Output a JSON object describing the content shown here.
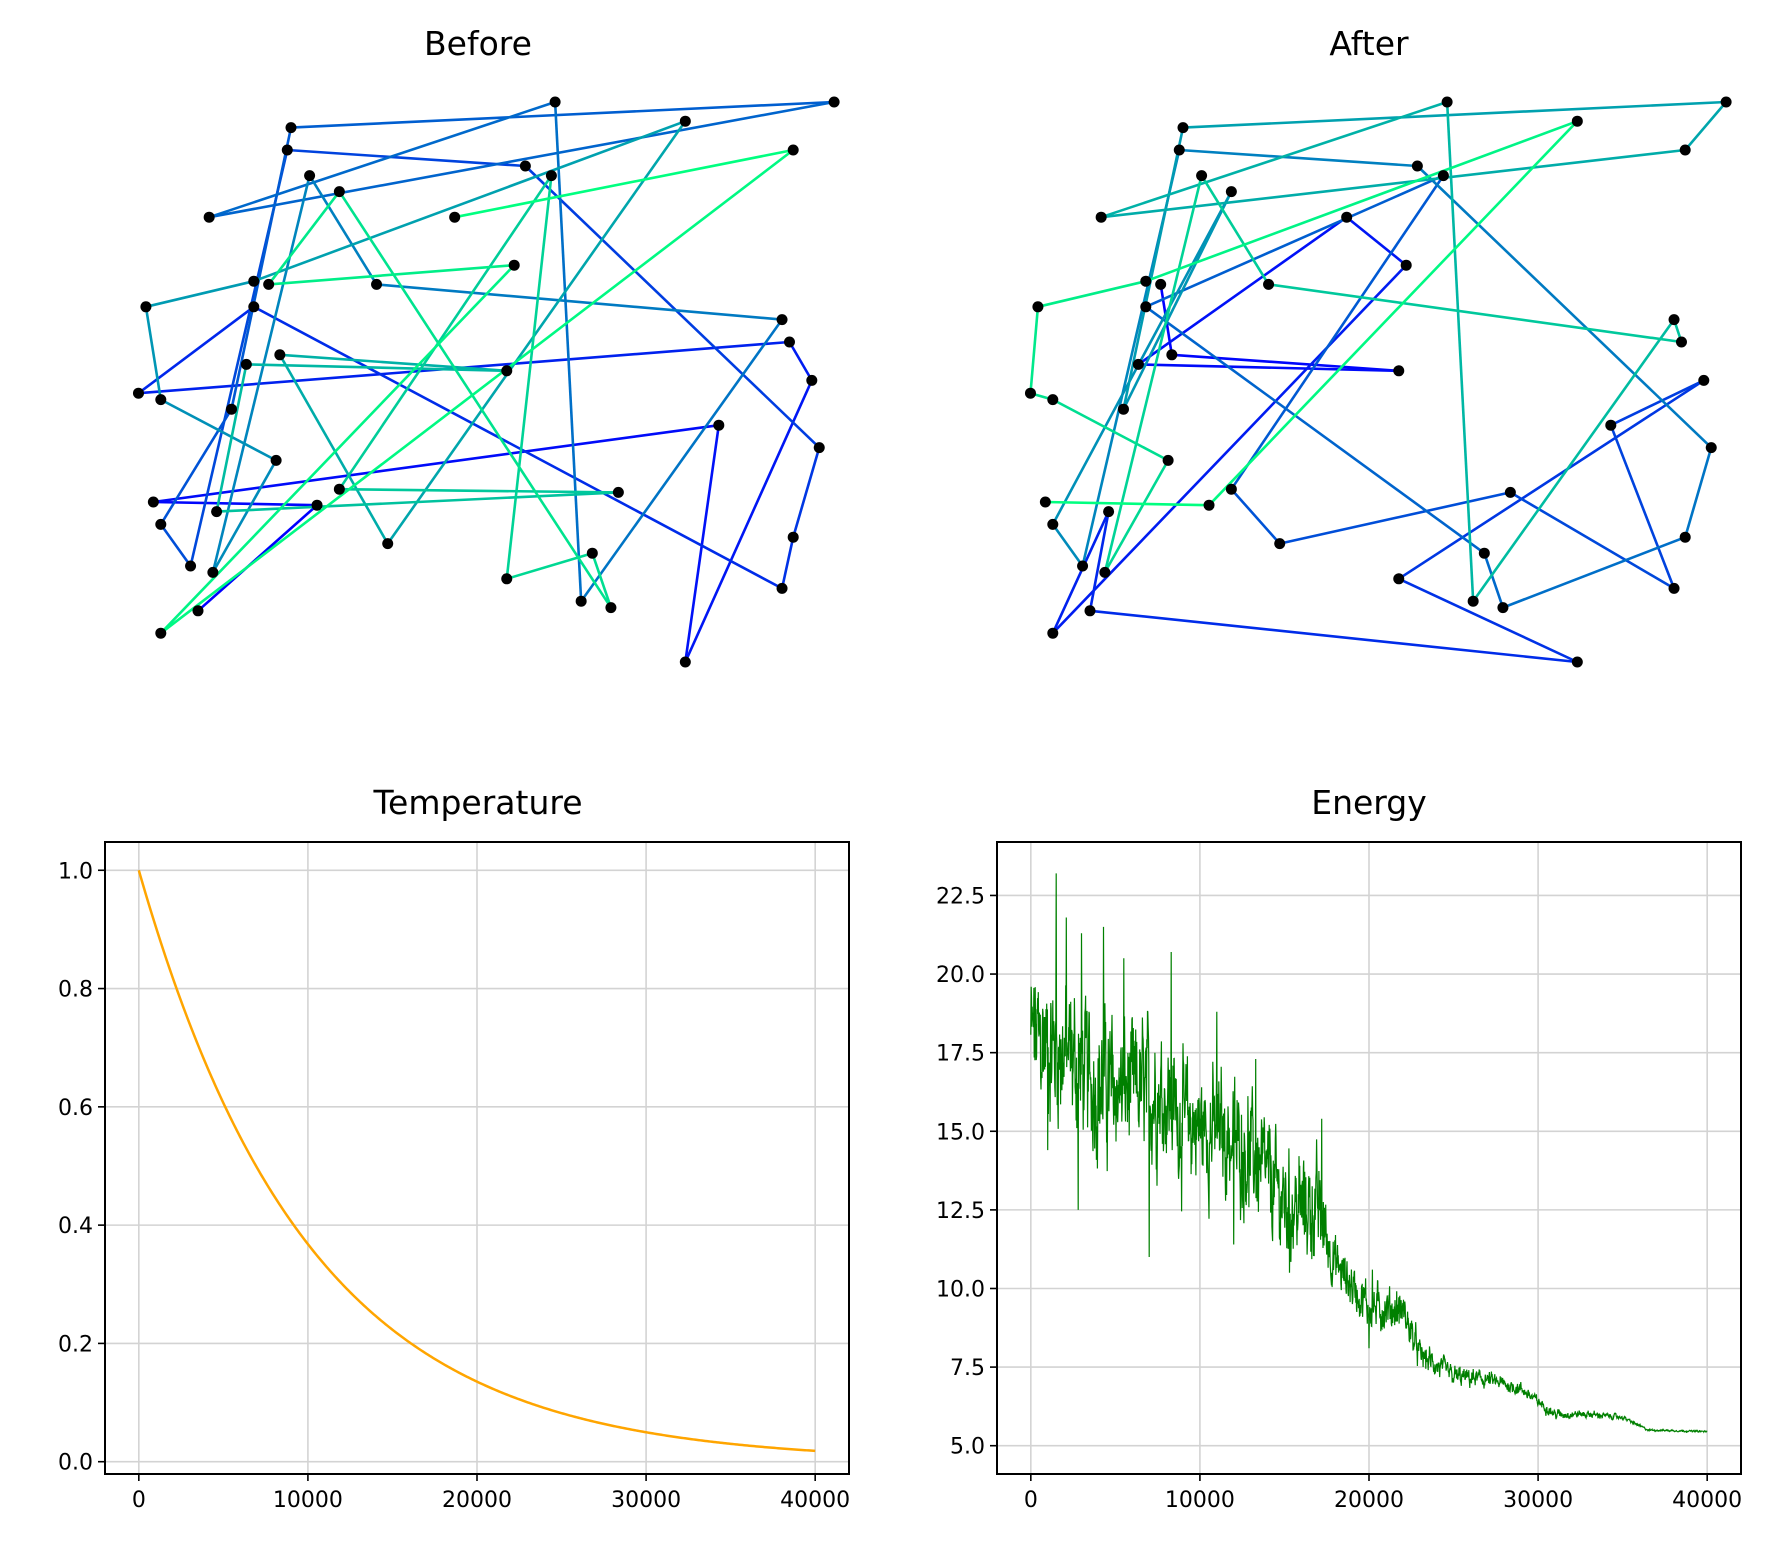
{
  "figure": {
    "titles": {
      "before": "Before",
      "after": "After",
      "temperature": "Temperature",
      "energy": "Energy"
    }
  },
  "colors": {
    "route_colormap": "winter",
    "route_start": "#0000ff",
    "route_end": "#00ff80",
    "city_marker": "#000000",
    "temperature_line": "#ffa500",
    "energy_line": "#008000",
    "grid": "#d3d3d3"
  },
  "chart_data": [
    {
      "type": "scatter",
      "title": "Before",
      "xlabel": "",
      "ylabel": "",
      "axes": "off",
      "xlim": [
        -1.0,
        1.0
      ],
      "ylim": [
        -1.0,
        1.0
      ],
      "cities": [
        [
          -0.56,
          0.33
        ],
        [
          0.1,
          0.39
        ],
        [
          -0.85,
          -0.76
        ],
        [
          0.85,
          0.75
        ],
        [
          -0.06,
          0.54
        ],
        [
          -0.75,
          -0.69
        ],
        [
          -0.43,
          -0.36
        ],
        [
          -0.87,
          -0.35
        ],
        [
          0.65,
          -0.11
        ],
        [
          0.56,
          -0.85
        ],
        [
          0.9,
          0.03
        ],
        [
          0.84,
          0.15
        ],
        [
          -0.91,
          -0.01
        ],
        [
          -0.6,
          0.26
        ],
        [
          0.82,
          -0.62
        ],
        [
          0.85,
          -0.46
        ],
        [
          0.92,
          -0.18
        ],
        [
          0.13,
          0.7
        ],
        [
          -0.51,
          0.75
        ],
        [
          -0.77,
          -0.55
        ],
        [
          -0.85,
          -0.42
        ],
        [
          -0.66,
          -0.06
        ],
        [
          -0.5,
          0.82
        ],
        [
          0.96,
          0.9
        ],
        [
          -0.72,
          0.54
        ],
        [
          0.21,
          0.9
        ],
        [
          0.28,
          -0.66
        ],
        [
          0.82,
          0.22
        ],
        [
          -0.27,
          0.33
        ],
        [
          -0.45,
          0.67
        ],
        [
          -0.71,
          -0.57
        ],
        [
          -0.54,
          -0.22
        ],
        [
          -0.85,
          -0.03
        ],
        [
          -0.89,
          0.26
        ],
        [
          -0.6,
          0.34
        ],
        [
          0.56,
          0.84
        ],
        [
          -0.24,
          -0.48
        ],
        [
          -0.53,
          0.11
        ],
        [
          0.08,
          0.06
        ],
        [
          -0.62,
          0.08
        ],
        [
          -0.7,
          -0.38
        ],
        [
          0.38,
          -0.32
        ],
        [
          -0.37,
          -0.31
        ],
        [
          0.2,
          0.67
        ],
        [
          0.08,
          -0.59
        ],
        [
          0.31,
          -0.51
        ],
        [
          0.36,
          -0.68
        ],
        [
          -0.37,
          0.62
        ]
      ],
      "route_before": [
        5,
        6,
        7,
        8,
        9,
        10,
        11,
        12,
        13,
        14,
        15,
        16,
        17,
        18,
        19,
        20,
        21,
        22,
        23,
        24,
        25,
        26,
        27,
        28,
        29,
        30,
        31,
        32,
        33,
        34,
        35,
        36,
        37,
        38,
        39,
        40,
        41,
        42,
        43,
        44,
        45,
        46,
        47,
        0,
        1,
        2,
        3,
        4
      ],
      "route_after": [
        0,
        37,
        38,
        39,
        4,
        1,
        2,
        40,
        5,
        9,
        44,
        10,
        8,
        14,
        41,
        36,
        42,
        43,
        13,
        45,
        46,
        15,
        16,
        17,
        18,
        19,
        20,
        47,
        21,
        22,
        23,
        3,
        24,
        25,
        26,
        27,
        11,
        28,
        29,
        30,
        31,
        32,
        12,
        33,
        34,
        35,
        6,
        7
      ]
    },
    {
      "type": "line",
      "title": "Temperature",
      "xlabel": "",
      "ylabel": "",
      "x_range": [
        0,
        40000
      ],
      "y_formula": "exp(-x/10000)",
      "xlim": [
        -2000,
        42000
      ],
      "ylim": [
        -0.0208,
        1.0478
      ],
      "xticks": [
        0,
        10000,
        20000,
        30000,
        40000
      ],
      "yticks": [
        0.0,
        0.2,
        0.4,
        0.6,
        0.8,
        1.0
      ],
      "grid": true
    },
    {
      "type": "line",
      "title": "Energy",
      "xlabel": "",
      "ylabel": "",
      "xlim": [
        -2000,
        42000
      ],
      "ylim": [
        4.1,
        24.2
      ],
      "xticks": [
        0,
        10000,
        20000,
        30000,
        40000
      ],
      "yticks": [
        5.0,
        7.5,
        10.0,
        12.5,
        15.0,
        17.5,
        20.0,
        22.5
      ],
      "grid": true,
      "trend": [
        [
          0,
          18.0
        ],
        [
          2000,
          17.5
        ],
        [
          4000,
          16.5
        ],
        [
          6000,
          16.3
        ],
        [
          8000,
          16.2
        ],
        [
          9000,
          15.3
        ],
        [
          11000,
          15.0
        ],
        [
          13000,
          14.3
        ],
        [
          15000,
          12.7
        ],
        [
          17000,
          12.5
        ],
        [
          18000,
          10.8
        ],
        [
          20000,
          9.4
        ],
        [
          22000,
          9.3
        ],
        [
          23000,
          7.9
        ],
        [
          25000,
          7.2
        ],
        [
          27000,
          7.1
        ],
        [
          29000,
          6.8
        ],
        [
          31000,
          6.0
        ],
        [
          33000,
          6.0
        ],
        [
          35000,
          5.9
        ],
        [
          36500,
          5.5
        ],
        [
          40000,
          5.45
        ]
      ],
      "noise_band": [
        [
          0,
          1.6
        ],
        [
          8000,
          1.4
        ],
        [
          11000,
          1.3
        ],
        [
          17000,
          1.1
        ],
        [
          18000,
          0.55
        ],
        [
          22000,
          0.45
        ],
        [
          23000,
          0.3
        ],
        [
          26000,
          0.2
        ],
        [
          30000,
          0.12
        ],
        [
          35000,
          0.05
        ],
        [
          36500,
          0.02
        ],
        [
          40000,
          0.02
        ]
      ],
      "spikes": [
        [
          1500,
          23.2
        ],
        [
          2100,
          21.8
        ],
        [
          3000,
          21.3
        ],
        [
          4300,
          21.5
        ],
        [
          5500,
          20.5
        ],
        [
          8300,
          20.7
        ],
        [
          11000,
          18.8
        ],
        [
          13300,
          17.3
        ],
        [
          17200,
          15.4
        ],
        [
          20200,
          10.6
        ],
        [
          1000,
          14.4
        ],
        [
          2800,
          12.5
        ],
        [
          7000,
          11.0
        ],
        [
          12000,
          11.4
        ],
        [
          15300,
          10.5
        ],
        [
          20000,
          8.1
        ]
      ]
    }
  ]
}
